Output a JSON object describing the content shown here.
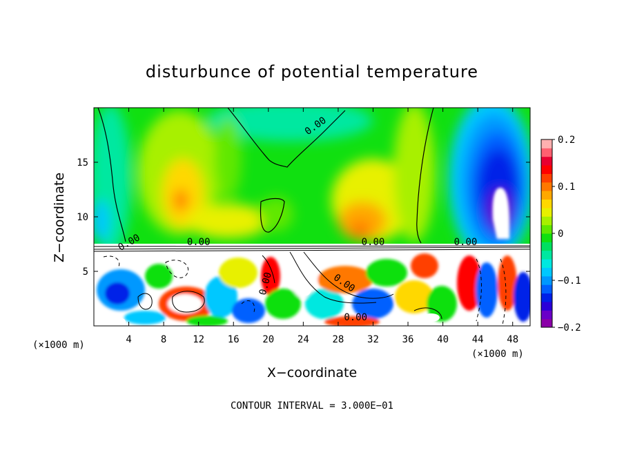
{
  "chart_data": {
    "type": "heatmap",
    "title": "disturbunce of potential temperature",
    "xlabel": "X−coordinate",
    "ylabel": "Z−coordinate",
    "x_unit": "(×1000 m)",
    "y_unit": "(×1000 m)",
    "xlim": [
      0,
      50
    ],
    "ylim": [
      0,
      20
    ],
    "x_ticks": [
      "4",
      "8",
      "12",
      "16",
      "20",
      "24",
      "28",
      "32",
      "36",
      "40",
      "44",
      "48"
    ],
    "y_ticks": [
      "5",
      "10",
      "15"
    ],
    "colorbar": {
      "range": [
        -0.2,
        0.2
      ],
      "ticks": [
        "0.2",
        "0.1",
        "0",
        "−0.1",
        "−0.2"
      ],
      "colors": [
        "#8b00a8",
        "#6a00c8",
        "#2a00d8",
        "#0020e8",
        "#0060ff",
        "#0098ff",
        "#00c8ff",
        "#00e8e0",
        "#00e8a0",
        "#00e060",
        "#10e010",
        "#60e800",
        "#a8f000",
        "#e8f000",
        "#ffd800",
        "#ffa800",
        "#ff7800",
        "#ff4000",
        "#ff0000",
        "#e80030",
        "#ff6070",
        "#ffb0b0"
      ]
    },
    "contour_labels": [
      "0.00",
      "0.00",
      "0.00",
      "0.00",
      "0.00",
      "0.00",
      "0.00",
      "0.00"
    ],
    "footer": "CONTOUR INTERVAL = 3.000E−01"
  }
}
